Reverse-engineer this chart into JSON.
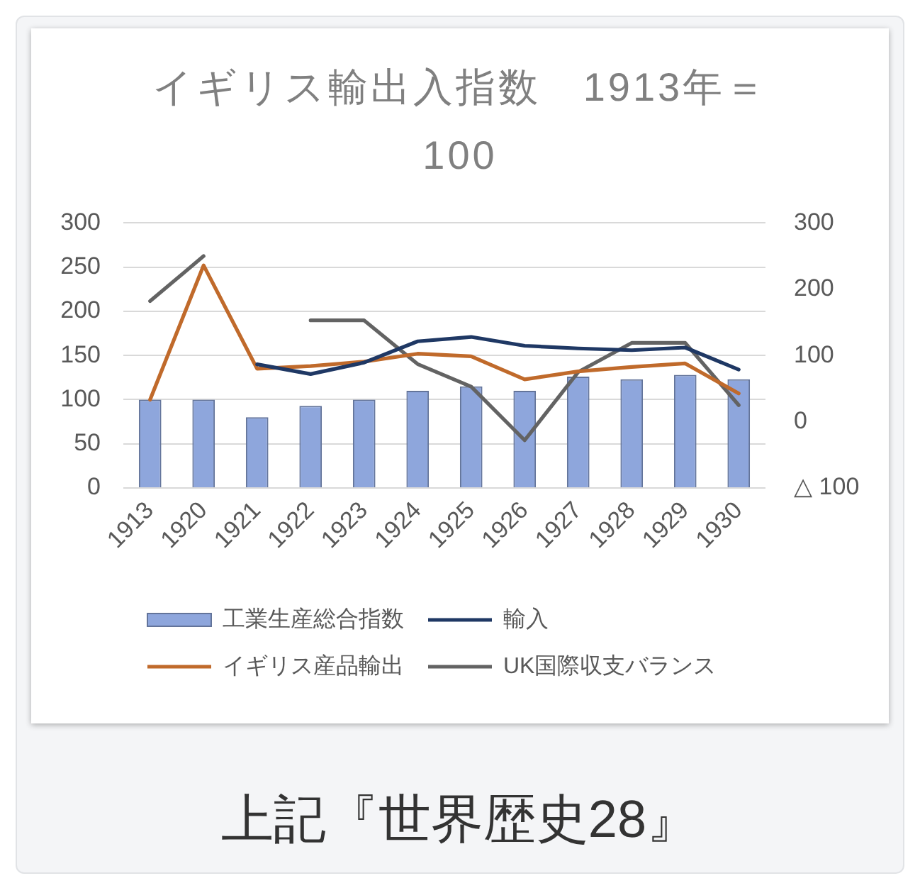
{
  "chart_data": {
    "type": "bar",
    "title": "イギリス輸出入指数　1913年＝100",
    "categories": [
      "1913",
      "1920",
      "1921",
      "1922",
      "1923",
      "1924",
      "1925",
      "1926",
      "1927",
      "1928",
      "1929",
      "1930"
    ],
    "series": [
      {
        "name": "工業生産総合指数",
        "color": "#8ea6dc",
        "values": [
          100,
          100,
          80,
          93,
          100,
          110,
          115,
          110,
          126,
          123,
          128,
          123
        ]
      },
      {
        "name": "輸入",
        "type": "line",
        "color": "#1f3864",
        "values": [
          null,
          null,
          140,
          129,
          142,
          166,
          171,
          161,
          158,
          156,
          159,
          134
        ]
      },
      {
        "name": "イギリス産品輸出",
        "type": "line",
        "color": "#c06a2b",
        "values": [
          100,
          252,
          135,
          138,
          143,
          152,
          149,
          123,
          132,
          137,
          141,
          107
        ]
      },
      {
        "name": "UK国際収支バランス",
        "type": "line",
        "color": "#636363",
        "axis": "y2",
        "values": [
          182,
          250,
          null,
          153,
          153,
          87,
          53,
          -28,
          75,
          119,
          119,
          25
        ]
      }
    ],
    "ylim": [
      0,
      300
    ],
    "yticks": [
      0,
      50,
      100,
      150,
      200,
      250,
      300
    ],
    "y2lim": [
      -100,
      300
    ],
    "y2ticks": [
      {
        "value": -100,
        "label": "△ 100"
      },
      0,
      100,
      200,
      300
    ],
    "grid": "y",
    "legend": "bottom",
    "marker": "none",
    "annotations": [
      "上記『世界歴史28』"
    ]
  }
}
